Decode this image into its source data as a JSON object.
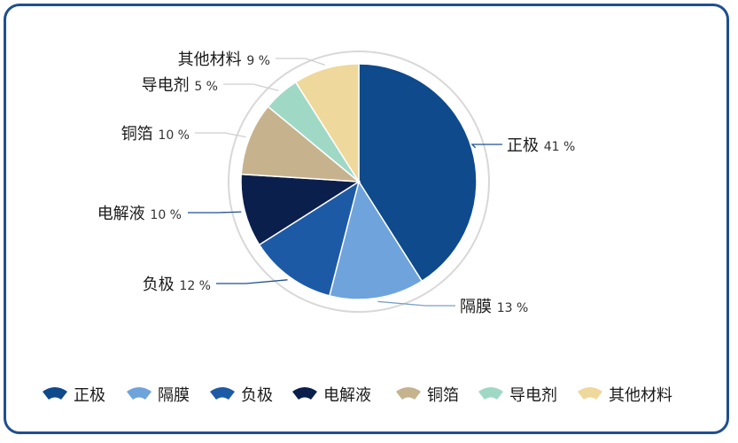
{
  "chart_data": {
    "type": "pie",
    "categories": [
      "正极",
      "隔膜",
      "负极",
      "电解液",
      "铜箔",
      "导电剂",
      "其他材料"
    ],
    "values": [
      41,
      13,
      12,
      10,
      10,
      5,
      9
    ],
    "value_labels": [
      "41 %",
      "13 %",
      "12 %",
      "10 %",
      "10 %",
      "5 %",
      "9 %"
    ],
    "colors": [
      "#0e4a8c",
      "#6fa3dc",
      "#1d5aa6",
      "#0b1f4d",
      "#c6b38e",
      "#9fd9c6",
      "#efd89b"
    ],
    "legend_placement": "bottom"
  }
}
